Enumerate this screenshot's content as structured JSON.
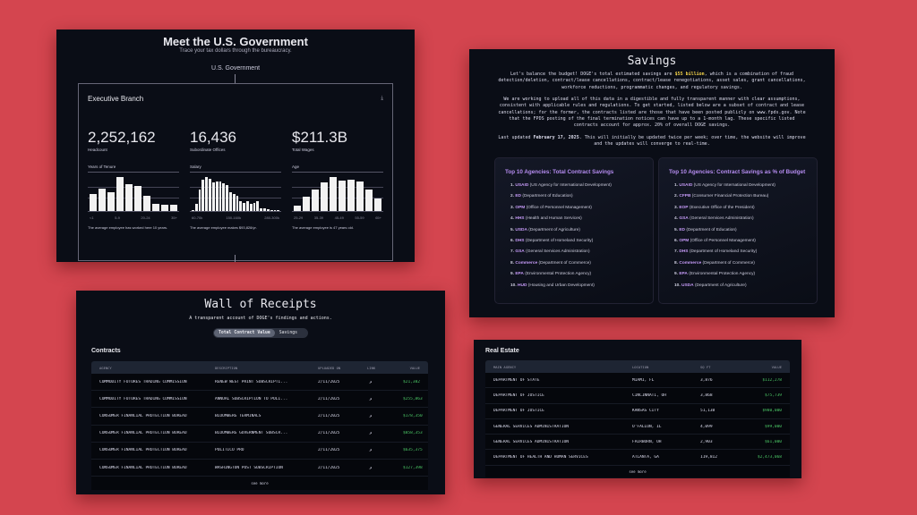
{
  "government": {
    "title": "Meet the U.S. Government",
    "subtitle": "Trace your tax dollars through the bureaucracy.",
    "root": "U.S. Government",
    "branch": {
      "title": "Executive Branch",
      "download_icon": "download-icon",
      "stats": [
        {
          "value": "2,252,162",
          "label": "Headcount"
        },
        {
          "value": "16,436",
          "label": "Subordinate Offices"
        },
        {
          "value": "$211.3B",
          "label": "Total Wages"
        }
      ],
      "histograms": [
        {
          "title": "Years of Tenure",
          "ticks": [
            "<1",
            "5-9",
            "20-24",
            "35+"
          ],
          "relative_values": [
            0.5,
            0.66,
            0.55,
            1,
            0.79,
            0.74,
            0.46,
            0.21,
            0.18,
            0.19
          ],
          "note": "The average employee has worked here 10 years."
        },
        {
          "title": "Salary",
          "ticks": [
            "60-70k",
            "150-160k",
            "280-300k"
          ],
          "relative_values": [
            0.03,
            0.22,
            0.64,
            0.93,
            1,
            0.96,
            0.85,
            0.86,
            0.86,
            0.82,
            0.76,
            0.55,
            0.49,
            0.45,
            0.28,
            0.24,
            0.3,
            0.21,
            0.23,
            0.3,
            0.09,
            0.07,
            0.04,
            0.03,
            0.03,
            0.02
          ],
          "note": "The average employee makes $93,828/yr."
        },
        {
          "title": "Age",
          "ticks": [
            "25-29",
            "35-39",
            "45-49",
            "55-59",
            "65+"
          ],
          "relative_values": [
            0.15,
            0.41,
            0.63,
            0.85,
            1,
            0.9,
            0.92,
            0.88,
            0.64,
            0.38
          ],
          "note": "The average employee is 47 years old."
        }
      ]
    }
  },
  "savings": {
    "title": "Savings",
    "p1_a": "Let's balance the budget! DOGE's total estimated savings are ",
    "p1_hl": "$55 billion",
    "p1_b": ", which is a combination of fraud detection/deletion, contract/lease cancellations, contract/lease renegotiations, asset sales, grant cancellations, workforce reductions, programmatic changes, and regulatory savings.",
    "p2": "We are working to upload all of this data in a digestible and fully transparent manner with clear assumptions, consistent with applicable rules and regulations. To get started, listed below are a subset of contract and lease cancellations; for the former, the contracts listed are those that have been posted publicly on www.fpds.gov. Note that the FPDS posting of the final termination notices can have up to a 1-month lag. These specific listed contracts account for approx. 20% of overall DOGE savings.",
    "p3_a": "Last updated ",
    "p3_b": "February 17, 2025",
    "p3_c": ". This will initially be updated twice per week; over time, the website will improve and the updates will converge to real-time.",
    "lists": [
      {
        "title": "Top 10 Agencies: Total Contract Savings",
        "items": [
          {
            "n": "1.",
            "abbr": "USAID",
            "name": "(US Agency for International Development)"
          },
          {
            "n": "2.",
            "abbr": "ED",
            "name": "(Department of Education)"
          },
          {
            "n": "3.",
            "abbr": "OPM",
            "name": "(Office of Personnel Management)"
          },
          {
            "n": "4.",
            "abbr": "HHS",
            "name": "(Health and Human Services)"
          },
          {
            "n": "5.",
            "abbr": "USDA",
            "name": "(Department of Agriculture)"
          },
          {
            "n": "6.",
            "abbr": "DHS",
            "name": "(Department of Homeland Security)"
          },
          {
            "n": "7.",
            "abbr": "GSA",
            "name": "(General Services Administration)"
          },
          {
            "n": "8.",
            "abbr": "Commerce",
            "name": "(Department of Commerce)"
          },
          {
            "n": "9.",
            "abbr": "EPA",
            "name": "(Environmental Protection Agency)"
          },
          {
            "n": "10.",
            "abbr": "HUD",
            "name": "(Housing and Urban Development)"
          }
        ]
      },
      {
        "title": "Top 10 Agencies: Contract Savings as % of Budget",
        "items": [
          {
            "n": "1.",
            "abbr": "USAID",
            "name": "(US Agency for International Development)"
          },
          {
            "n": "2.",
            "abbr": "CFPB",
            "name": "(Consumer Financial Protection Bureau)"
          },
          {
            "n": "3.",
            "abbr": "EOP",
            "name": "(Executive Office of the President)"
          },
          {
            "n": "4.",
            "abbr": "GSA",
            "name": "(General Services Administration)"
          },
          {
            "n": "5.",
            "abbr": "ED",
            "name": "(Department of Education)"
          },
          {
            "n": "6.",
            "abbr": "OPM",
            "name": "(Office of Personnel Management)"
          },
          {
            "n": "7.",
            "abbr": "DHS",
            "name": "(Department of Homeland Security)"
          },
          {
            "n": "8.",
            "abbr": "Commerce",
            "name": "(Department of Commerce)"
          },
          {
            "n": "9.",
            "abbr": "EPA",
            "name": "(Environmental Protection Agency)"
          },
          {
            "n": "10.",
            "abbr": "USDA",
            "name": "(Department of Agriculture)"
          }
        ]
      }
    ]
  },
  "receipts": {
    "title": "Wall of Receipts",
    "subtitle": "A transparent account of DOGE's findings and actions.",
    "tabs": [
      "Total Contract Value",
      "Savings"
    ],
    "active_tab": 0,
    "section": "Contracts",
    "columns": [
      "AGENCY",
      "DESCRIPTION",
      "UPLOADED ON",
      "LINK",
      "VALUE"
    ],
    "link_icon": "external-link-icon",
    "rows": [
      [
        "COMMODITY FUTURES TRADING COMMISSION",
        "RENEW WEST PRINT SUBSCRIPTI...",
        "2/11/2025",
        "$21,382"
      ],
      [
        "COMMODITY FUTURES TRADING COMMISSION",
        "ANNUAL SUBSCRIPTION TO POLI...",
        "2/11/2025",
        "$255,863"
      ],
      [
        "CONSUMER FINANCIAL PROTECTION BUREAU",
        "BLOOMBERG TERMINALS",
        "2/11/2025",
        "$178,350"
      ],
      [
        "CONSUMER FINANCIAL PROTECTION BUREAU",
        "BLOOMBERG GOVERNMENT SUBSCR...",
        "2/11/2025",
        "$858,353"
      ],
      [
        "CONSUMER FINANCIAL PROTECTION BUREAU",
        "POLITICO PRO",
        "2/11/2025",
        "$635,375"
      ],
      [
        "CONSUMER FINANCIAL PROTECTION BUREAU",
        "WASHINGTON POST SUBSCRIPTION",
        "2/11/2025",
        "$127,398"
      ]
    ],
    "see_more": "see more"
  },
  "real_estate": {
    "section": "Real Estate",
    "columns": [
      "MAIN AGENCY",
      "LOCATION",
      "SQ FT",
      "VALUE"
    ],
    "rows": [
      [
        "DEPARTMENT OF STATE",
        "MIAMI, FL",
        "3,876",
        "$112,278"
      ],
      [
        "DEPARTMENT OF JUSTICE",
        "CINCINNATI, OH",
        "3,868",
        "$75,739"
      ],
      [
        "DEPARTMENT OF JUSTICE",
        "KANSAS CITY",
        "51,138",
        "$980,000"
      ],
      [
        "GENERAL SERVICES ADMINISTRATION",
        "O'FALLON, IL",
        "4,099",
        "$99,000"
      ],
      [
        "GENERAL SERVICES ADMINISTRATION",
        "FAIRBORN, OH",
        "2,903",
        "$61,000"
      ],
      [
        "DEPARTMENT OF HEALTH AND HUMAN SERVICES",
        "ATLANTA, GA",
        "119,812",
        "$2,473,068"
      ]
    ],
    "see_more": "see more"
  },
  "colors": {
    "background": "#d4454f",
    "panel": "#0a0d16",
    "accent_purple": "#c59af7",
    "value_green": "#4cc866",
    "highlight_yellow": "#f5d44a"
  }
}
